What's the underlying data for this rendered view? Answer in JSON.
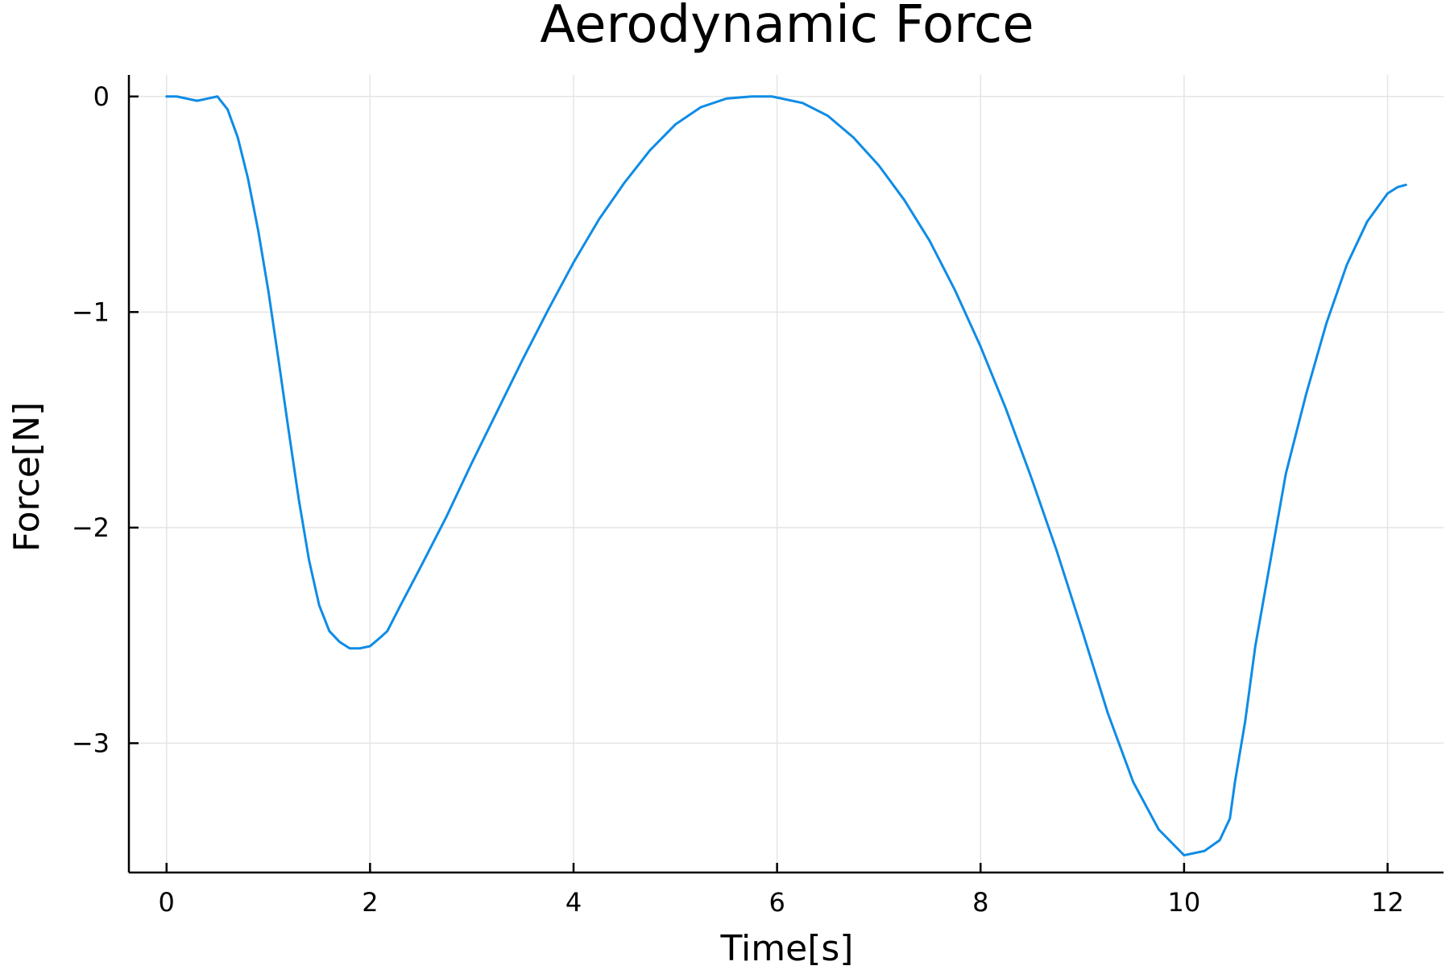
{
  "chart_data": {
    "type": "line",
    "title": "Aerodynamic Force",
    "xlabel": "Time[s]",
    "ylabel": "Force[N]",
    "xlim": [
      -0.37,
      12.55
    ],
    "ylim": [
      -3.6,
      0.1
    ],
    "xticks": [
      0,
      2,
      4,
      6,
      8,
      10,
      12
    ],
    "xtick_labels": [
      "0",
      "2",
      "4",
      "6",
      "8",
      "10",
      "12"
    ],
    "yticks": [
      0,
      -1,
      -2,
      -3
    ],
    "ytick_labels": [
      "0",
      "−1",
      "−2",
      "−3"
    ],
    "grid": true,
    "legend": "none",
    "colors": {
      "line": "#0e8ce6",
      "grid": "#e5e5e5",
      "axis": "#000000"
    },
    "series": [
      {
        "x": [
          0,
          0.1,
          0.2,
          0.3,
          0.4,
          0.5,
          0.6,
          0.7,
          0.8,
          0.9,
          1.0,
          1.1,
          1.2,
          1.3,
          1.4,
          1.5,
          1.6,
          1.7,
          1.8,
          1.9,
          2.0,
          2.1,
          2.17,
          2.3,
          2.5,
          2.75,
          3.0,
          3.25,
          3.5,
          3.75,
          4.0,
          4.25,
          4.5,
          4.75,
          5.0,
          5.25,
          5.5,
          5.75,
          5.95,
          6.25,
          6.5,
          6.75,
          7.0,
          7.25,
          7.5,
          7.75,
          8.0,
          8.25,
          8.5,
          8.75,
          9.0,
          9.25,
          9.5,
          9.75,
          10.0,
          10.2,
          10.35,
          10.45,
          10.5,
          10.6,
          10.7,
          10.85,
          11.0,
          11.2,
          11.4,
          11.6,
          11.8,
          12.0,
          12.1,
          12.18
        ],
        "y": [
          0,
          0,
          -0.01,
          -0.02,
          -0.01,
          0,
          -0.06,
          -0.19,
          -0.38,
          -0.62,
          -0.9,
          -1.22,
          -1.55,
          -1.87,
          -2.15,
          -2.36,
          -2.48,
          -2.53,
          -2.56,
          -2.56,
          -2.55,
          -2.51,
          -2.48,
          -2.36,
          -2.18,
          -1.95,
          -1.7,
          -1.46,
          -1.22,
          -0.99,
          -0.77,
          -0.57,
          -0.4,
          -0.25,
          -0.13,
          -0.05,
          -0.01,
          0,
          0,
          -0.03,
          -0.09,
          -0.19,
          -0.32,
          -0.48,
          -0.67,
          -0.9,
          -1.16,
          -1.45,
          -1.77,
          -2.11,
          -2.48,
          -2.86,
          -3.18,
          -3.4,
          -3.52,
          -3.5,
          -3.45,
          -3.35,
          -3.18,
          -2.9,
          -2.55,
          -2.15,
          -1.75,
          -1.38,
          -1.05,
          -0.78,
          -0.58,
          -0.45,
          -0.42,
          -0.41
        ]
      }
    ]
  }
}
